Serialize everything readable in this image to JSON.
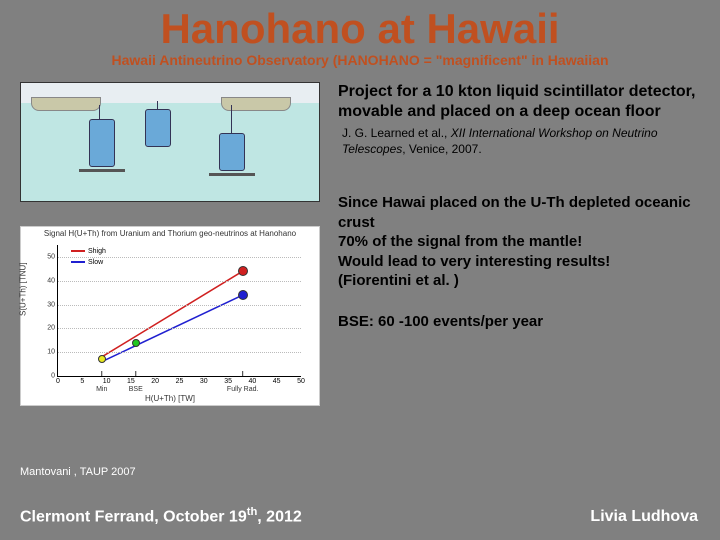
{
  "title": "Hanohano at Hawaii",
  "subtitle": "Hawaii Antineutrino Observatory (HANOHANO = \"magnificent\" in Hawaiian",
  "description": "Project for a 10 kton liquid scintillator detector, movable and placed on a deep ocean floor",
  "citation_author": "J. G. Learned et al., ",
  "citation_journal": "XII International Workshop on Neutrino Telescopes",
  "citation_rest": ", Venice, 2007.",
  "para2_l1": "Since Hawai placed on the U-Th depleted oceanic crust",
  "para2_l2": "70% of the signal from the mantle!",
  "para2_l3": "Would lead to very interesting results!",
  "para2_l4": "(Fiorentini et al. )",
  "para3": "BSE: 60 -100 events/per year",
  "caption": "Mantovani , TAUP 2007",
  "footer_left": "Clermont Ferrand, October 19",
  "footer_left_sup": "th",
  "footer_left_rest": ", 2012",
  "footer_right": "Livia Ludhova",
  "diagram": {
    "background": "#e8eef2",
    "water_color": "#bfe6e3",
    "ship_color": "#c9c8a8",
    "cylinder_color": "#6aa9d8"
  },
  "chart": {
    "type": "scatter-line",
    "title": "Signal H(U+Th) from Uranium and Thorium geo-neutrinos at Hanohano",
    "xlabel": "H(U+Th) [TW]",
    "ylabel": "S(U+Th) [TNU]",
    "xlim": [
      0,
      50
    ],
    "ylim": [
      0,
      55
    ],
    "xtick_step": 5,
    "ytick_step": 10,
    "grid_color": "#bbbbbb",
    "background_color": "#ffffff",
    "x_annotations": [
      {
        "x": 9,
        "label": "Min"
      },
      {
        "x": 16,
        "label": "BSE"
      },
      {
        "x": 38,
        "label": "Fully Rad."
      }
    ],
    "series": [
      {
        "name": "Shigh",
        "color": "#d02020",
        "slope_start": [
          9,
          8
        ],
        "slope_end": [
          38,
          44
        ]
      },
      {
        "name": "Slow",
        "color": "#2020d0",
        "slope_start": [
          9,
          6
        ],
        "slope_end": [
          38,
          34
        ]
      }
    ],
    "markers": [
      {
        "x": 9,
        "y": 7,
        "color": "#e8e820",
        "size": 8
      },
      {
        "x": 16,
        "y": 14,
        "color": "#20c820",
        "size": 8
      },
      {
        "x": 38,
        "y": 44,
        "color": "#d02020",
        "size": 10
      },
      {
        "x": 38,
        "y": 34,
        "color": "#2020d0",
        "size": 10
      }
    ]
  }
}
